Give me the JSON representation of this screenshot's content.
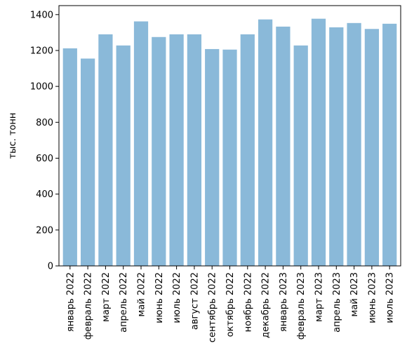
{
  "chart_data": {
    "type": "bar",
    "title": "",
    "xlabel": "",
    "ylabel": "тыс. тонн",
    "ylim": [
      0,
      1450
    ],
    "yticks": [
      0,
      200,
      400,
      600,
      800,
      1000,
      1200,
      1400
    ],
    "grid": false,
    "bar_color": "#8ab9d9",
    "categories": [
      "январь 2022",
      "февраль 2022",
      "март 2022",
      "апрель 2022",
      "май 2022",
      "июнь 2022",
      "июль 2022",
      "август 2022",
      "сентябрь 2022",
      "октябрь 2022",
      "ноябрь 2022",
      "декабрь 2022",
      "январь 2023",
      "февраль 2023",
      "март 2023",
      "апрель 2023",
      "май 2023",
      "июнь 2023",
      "июль 2023"
    ],
    "values": [
      1212,
      1155,
      1290,
      1228,
      1362,
      1275,
      1290,
      1290,
      1208,
      1205,
      1290,
      1373,
      1333,
      1228,
      1377,
      1329,
      1353,
      1320,
      1349
    ]
  }
}
